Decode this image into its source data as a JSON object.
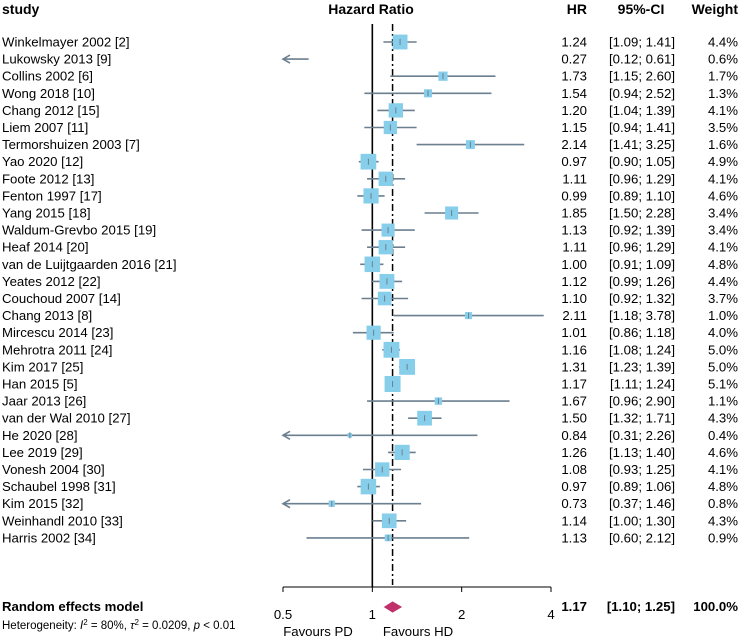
{
  "chart_data": {
    "type": "forest",
    "headers": {
      "study": "study",
      "effect": "Hazard Ratio",
      "hr": "HR",
      "ci": "95%-CI",
      "weight": "Weight"
    },
    "studies": [
      {
        "study": "Winkelmayer 2002 [2]",
        "hr": 1.24,
        "lower": 1.09,
        "upper": 1.41,
        "hr_text": "1.24",
        "ci_text": "[1.09; 1.41]",
        "weight": 4.4,
        "weight_text": "4.4%"
      },
      {
        "study": "Lukowsky 2013 [9]",
        "hr": 0.27,
        "lower": 0.12,
        "upper": 0.61,
        "hr_text": "0.27",
        "ci_text": "[0.12; 0.61]",
        "weight": 0.6,
        "weight_text": "0.6%"
      },
      {
        "study": "Collins 2002 [6]",
        "hr": 1.73,
        "lower": 1.15,
        "upper": 2.6,
        "hr_text": "1.73",
        "ci_text": "[1.15; 2.60]",
        "weight": 1.7,
        "weight_text": "1.7%"
      },
      {
        "study": "Wong 2018 [10]",
        "hr": 1.54,
        "lower": 0.94,
        "upper": 2.52,
        "hr_text": "1.54",
        "ci_text": "[0.94; 2.52]",
        "weight": 1.3,
        "weight_text": "1.3%"
      },
      {
        "study": "Chang 2012 [15]",
        "hr": 1.2,
        "lower": 1.04,
        "upper": 1.39,
        "hr_text": "1.20",
        "ci_text": "[1.04; 1.39]",
        "weight": 4.1,
        "weight_text": "4.1%"
      },
      {
        "study": "Liem 2007 [11]",
        "hr": 1.15,
        "lower": 0.94,
        "upper": 1.41,
        "hr_text": "1.15",
        "ci_text": "[0.94; 1.41]",
        "weight": 3.5,
        "weight_text": "3.5%"
      },
      {
        "study": "Termorshuizen 2003 [7]",
        "hr": 2.14,
        "lower": 1.41,
        "upper": 3.25,
        "hr_text": "2.14",
        "ci_text": "[1.41; 3.25]",
        "weight": 1.6,
        "weight_text": "1.6%"
      },
      {
        "study": "Yao 2020 [12]",
        "hr": 0.97,
        "lower": 0.9,
        "upper": 1.05,
        "hr_text": "0.97",
        "ci_text": "[0.90; 1.05]",
        "weight": 4.9,
        "weight_text": "4.9%"
      },
      {
        "study": "Foote 2012 [13]",
        "hr": 1.11,
        "lower": 0.96,
        "upper": 1.29,
        "hr_text": "1.11",
        "ci_text": "[0.96; 1.29]",
        "weight": 4.1,
        "weight_text": "4.1%"
      },
      {
        "study": "Fenton 1997 [17]",
        "hr": 0.99,
        "lower": 0.89,
        "upper": 1.1,
        "hr_text": "0.99",
        "ci_text": "[0.89; 1.10]",
        "weight": 4.6,
        "weight_text": "4.6%"
      },
      {
        "study": "Yang 2015 [18]",
        "hr": 1.85,
        "lower": 1.5,
        "upper": 2.28,
        "hr_text": "1.85",
        "ci_text": "[1.50; 2.28]",
        "weight": 3.4,
        "weight_text": "3.4%"
      },
      {
        "study": "Waldum-Grevbo 2015 [19]",
        "hr": 1.13,
        "lower": 0.92,
        "upper": 1.39,
        "hr_text": "1.13",
        "ci_text": "[0.92; 1.39]",
        "weight": 3.4,
        "weight_text": "3.4%"
      },
      {
        "study": "Heaf 2014 [20]",
        "hr": 1.11,
        "lower": 0.96,
        "upper": 1.29,
        "hr_text": "1.11",
        "ci_text": "[0.96; 1.29]",
        "weight": 4.1,
        "weight_text": "4.1%"
      },
      {
        "study": "van de Luijtgaarden 2016 [21]",
        "hr": 1.0,
        "lower": 0.91,
        "upper": 1.09,
        "hr_text": "1.00",
        "ci_text": "[0.91; 1.09]",
        "weight": 4.8,
        "weight_text": "4.8%"
      },
      {
        "study": "Yeates 2012 [22]",
        "hr": 1.12,
        "lower": 0.99,
        "upper": 1.26,
        "hr_text": "1.12",
        "ci_text": "[0.99; 1.26]",
        "weight": 4.4,
        "weight_text": "4.4%"
      },
      {
        "study": "Couchoud 2007 [14]",
        "hr": 1.1,
        "lower": 0.92,
        "upper": 1.32,
        "hr_text": "1.10",
        "ci_text": "[0.92; 1.32]",
        "weight": 3.7,
        "weight_text": "3.7%"
      },
      {
        "study": "Chang 2013 [8]",
        "hr": 2.11,
        "lower": 1.18,
        "upper": 3.78,
        "hr_text": "2.11",
        "ci_text": "[1.18; 3.78]",
        "weight": 1.0,
        "weight_text": "1.0%"
      },
      {
        "study": "Mircescu 2014 [23]",
        "hr": 1.01,
        "lower": 0.86,
        "upper": 1.18,
        "hr_text": "1.01",
        "ci_text": "[0.86; 1.18]",
        "weight": 4.0,
        "weight_text": "4.0%"
      },
      {
        "study": "Mehrotra 2011 [24]",
        "hr": 1.16,
        "lower": 1.08,
        "upper": 1.24,
        "hr_text": "1.16",
        "ci_text": "[1.08; 1.24]",
        "weight": 5.0,
        "weight_text": "5.0%"
      },
      {
        "study": "Kim 2017 [25]",
        "hr": 1.31,
        "lower": 1.23,
        "upper": 1.39,
        "hr_text": "1.31",
        "ci_text": "[1.23; 1.39]",
        "weight": 5.0,
        "weight_text": "5.0%"
      },
      {
        "study": "Han 2015 [5]",
        "hr": 1.17,
        "lower": 1.11,
        "upper": 1.24,
        "hr_text": "1.17",
        "ci_text": "[1.11; 1.24]",
        "weight": 5.1,
        "weight_text": "5.1%"
      },
      {
        "study": "Jaar 2013 [26]",
        "hr": 1.67,
        "lower": 0.96,
        "upper": 2.9,
        "hr_text": "1.67",
        "ci_text": "[0.96; 2.90]",
        "weight": 1.1,
        "weight_text": "1.1%"
      },
      {
        "study": "van der Wal 2010 [27]",
        "hr": 1.5,
        "lower": 1.32,
        "upper": 1.71,
        "hr_text": "1.50",
        "ci_text": "[1.32; 1.71]",
        "weight": 4.3,
        "weight_text": "4.3%"
      },
      {
        "study": "He 2020 [28]",
        "hr": 0.84,
        "lower": 0.31,
        "upper": 2.26,
        "hr_text": "0.84",
        "ci_text": "[0.31; 2.26]",
        "weight": 0.4,
        "weight_text": "0.4%"
      },
      {
        "study": "Lee 2019 [29]",
        "hr": 1.26,
        "lower": 1.13,
        "upper": 1.4,
        "hr_text": "1.26",
        "ci_text": "[1.13; 1.40]",
        "weight": 4.6,
        "weight_text": "4.6%"
      },
      {
        "study": "Vonesh 2004 [30]",
        "hr": 1.08,
        "lower": 0.93,
        "upper": 1.25,
        "hr_text": "1.08",
        "ci_text": "[0.93; 1.25]",
        "weight": 4.1,
        "weight_text": "4.1%"
      },
      {
        "study": "Schaubel 1998 [31]",
        "hr": 0.97,
        "lower": 0.89,
        "upper": 1.06,
        "hr_text": "0.97",
        "ci_text": "[0.89; 1.06]",
        "weight": 4.8,
        "weight_text": "4.8%"
      },
      {
        "study": "Kim 2015 [32]",
        "hr": 0.73,
        "lower": 0.37,
        "upper": 1.46,
        "hr_text": "0.73",
        "ci_text": "[0.37; 1.46]",
        "weight": 0.8,
        "weight_text": "0.8%"
      },
      {
        "study": "Weinhandl 2010 [33]",
        "hr": 1.14,
        "lower": 1.0,
        "upper": 1.3,
        "hr_text": "1.14",
        "ci_text": "[1.00; 1.30]",
        "weight": 4.3,
        "weight_text": "4.3%"
      },
      {
        "study": "Harris 2002 [34]",
        "hr": 1.13,
        "lower": 0.6,
        "upper": 2.12,
        "hr_text": "1.13",
        "ci_text": "[0.60; 2.12]",
        "weight": 0.9,
        "weight_text": "0.9%"
      }
    ],
    "pooled": {
      "label": "Random effects model",
      "hr": 1.17,
      "lower": 1.1,
      "upper": 1.25,
      "hr_text": "1.17",
      "ci_text": "[1.10; 1.25]",
      "weight_text": "100.0%"
    },
    "heterogeneity": {
      "prefix": "Heterogeneity: ",
      "i2_label": "I",
      "i2_sup": "2",
      "i2_value": " = 80%, ",
      "tau_label": "τ",
      "tau_sup": "2",
      "tau_value": " = 0.0209, ",
      "p_label": "p",
      "p_value": " < 0.01"
    },
    "x_axis": {
      "scale": "log",
      "range": [
        0.5,
        4
      ],
      "ticks": [
        0.5,
        1,
        2,
        4
      ],
      "tick_labels": [
        "0.5",
        "1",
        "2",
        "4"
      ]
    },
    "reference_line": 1,
    "favours_left": "Favours PD",
    "favours_right": "Favours HD",
    "colors": {
      "box": "#87ceeb",
      "ci_line": "#6b7f8f",
      "diamond": "#c0306a",
      "text": "#111111"
    }
  }
}
